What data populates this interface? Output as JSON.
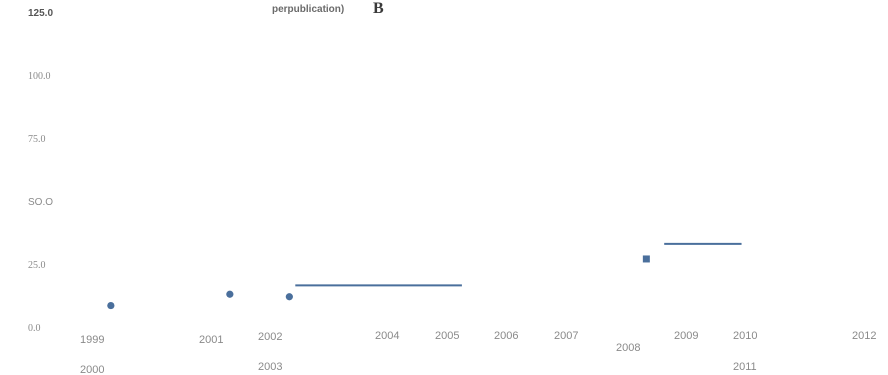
{
  "chart_data": {
    "type": "scatter",
    "title": "perpublication)",
    "title_suffix": "B",
    "y_tick_labels": [
      "0.0",
      "25.0",
      "SO.O",
      "75.0",
      "100.0",
      "125.0"
    ],
    "ylim": [
      0,
      125
    ],
    "x_tick_labels": [
      "1999",
      "2000",
      "2001",
      "2002",
      "2003",
      "2004",
      "2005",
      "2006",
      "2007",
      "2008",
      "2009",
      "2010",
      "2011",
      "2012"
    ],
    "xlim": [
      1999,
      2012
    ],
    "grid": false,
    "series_color": "#4a6f9c",
    "points": [
      {
        "x": 1999.3,
        "y": 8.5,
        "marker": "circle"
      },
      {
        "x": 2001.3,
        "y": 13,
        "marker": "circle"
      },
      {
        "x": 2002.3,
        "y": 12,
        "marker": "circle"
      },
      {
        "x": 2008.3,
        "y": 27,
        "marker": "square"
      }
    ],
    "segments": [
      {
        "x_start": 2002.4,
        "x_end": 2005.2,
        "y": 16.5
      },
      {
        "x_start": 2008.6,
        "x_end": 2009.9,
        "y": 33
      }
    ]
  }
}
